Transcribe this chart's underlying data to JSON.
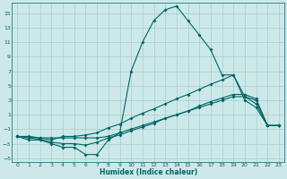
{
  "title": "",
  "xlabel": "Humidex (Indice chaleur)",
  "bg_color": "#cce8e8",
  "grid_color": "#aacccc",
  "line_color": "#006666",
  "xlim": [
    -0.5,
    23.5
  ],
  "ylim": [
    -5.5,
    16.5
  ],
  "yticks": [
    -5,
    -3,
    -1,
    1,
    3,
    5,
    7,
    9,
    11,
    13,
    15
  ],
  "xticks": [
    0,
    1,
    2,
    3,
    4,
    5,
    6,
    7,
    8,
    9,
    10,
    11,
    12,
    13,
    14,
    15,
    16,
    17,
    18,
    19,
    20,
    21,
    22,
    23
  ],
  "line1_x": [
    0,
    1,
    2,
    3,
    4,
    5,
    6,
    7,
    8,
    9,
    10,
    11,
    12,
    13,
    14,
    15,
    16,
    17,
    18,
    19,
    20,
    21,
    22,
    23
  ],
  "line1_y": [
    -2,
    -2.5,
    -2.5,
    -3,
    -3.5,
    -3.5,
    -4.5,
    -4.5,
    -2.5,
    -1.5,
    7,
    11,
    14,
    15.5,
    16,
    14,
    12,
    10,
    6.5,
    6.5,
    3,
    2,
    -0.5,
    -0.5
  ],
  "line2_x": [
    0,
    1,
    2,
    3,
    4,
    5,
    6,
    7,
    8,
    9,
    10,
    11,
    12,
    13,
    14,
    15,
    16,
    17,
    18,
    19,
    20,
    21,
    22,
    23
  ],
  "line2_y": [
    -2,
    -2,
    -2.2,
    -2.5,
    -2,
    -2,
    -1.8,
    -1.5,
    -0.8,
    -0.3,
    0.5,
    1.2,
    1.8,
    2.5,
    3.2,
    3.8,
    4.5,
    5.2,
    5.8,
    6.5,
    3.5,
    2.5,
    -0.5,
    -0.5
  ],
  "line3_x": [
    0,
    1,
    2,
    3,
    4,
    5,
    6,
    7,
    8,
    9,
    10,
    11,
    12,
    13,
    14,
    15,
    16,
    17,
    18,
    19,
    20,
    21,
    22,
    23
  ],
  "line3_y": [
    -2,
    -2.2,
    -2.4,
    -2.8,
    -3,
    -3,
    -3.2,
    -2.8,
    -2.2,
    -1.8,
    -1.2,
    -0.7,
    -0.2,
    0.5,
    1.0,
    1.5,
    2.2,
    2.8,
    3.3,
    3.8,
    3.8,
    3.2,
    -0.5,
    -0.5
  ],
  "line4_x": [
    0,
    2,
    3,
    4,
    5,
    6,
    7,
    8,
    9,
    10,
    11,
    12,
    13,
    14,
    15,
    16,
    17,
    18,
    19,
    20,
    21,
    22,
    23
  ],
  "line4_y": [
    -2,
    -2.2,
    -2.2,
    -2.2,
    -2.2,
    -2.2,
    -2.2,
    -2,
    -1.5,
    -1,
    -0.5,
    0,
    0.5,
    1,
    1.5,
    2,
    2.5,
    3,
    3.5,
    3.5,
    3,
    -0.5,
    -0.5
  ]
}
